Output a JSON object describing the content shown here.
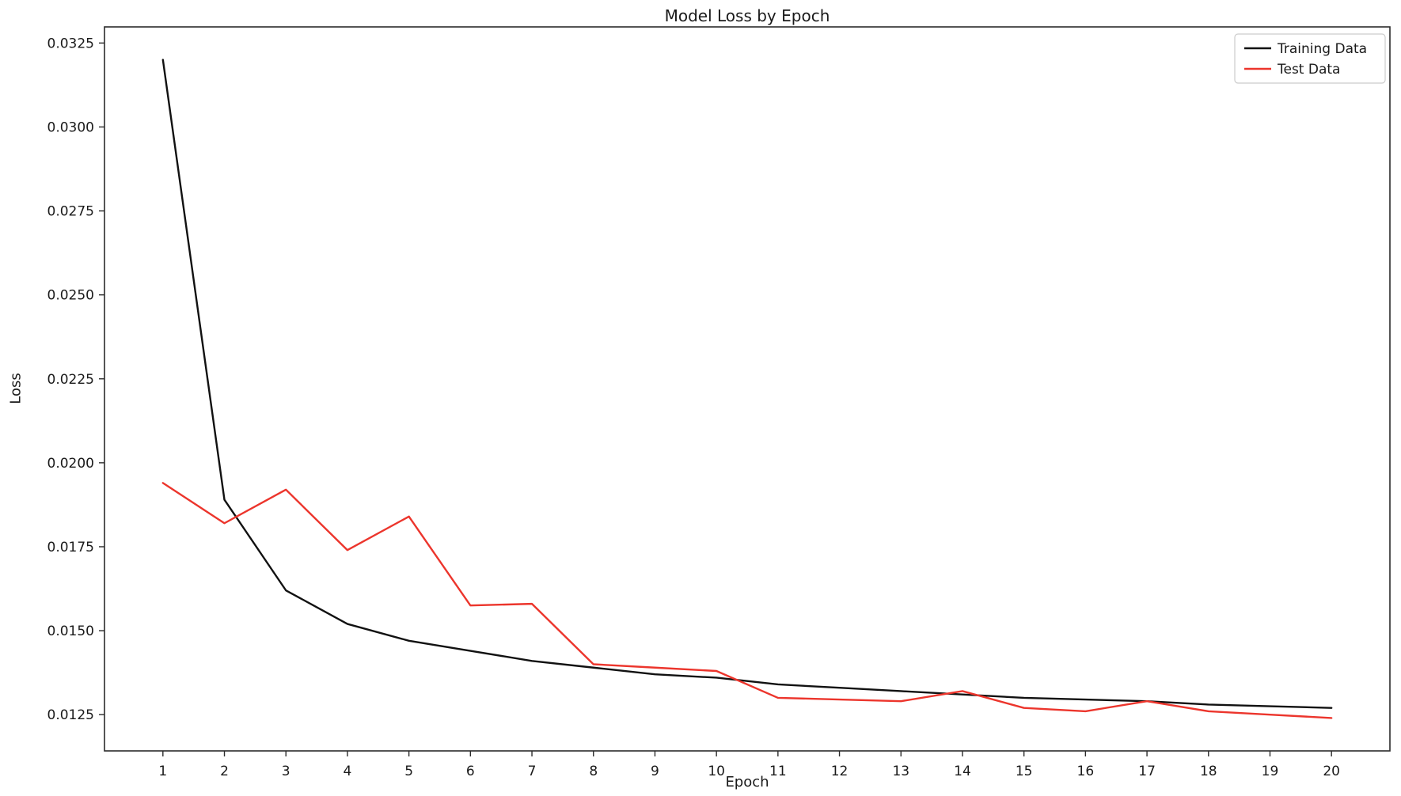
{
  "figure": {
    "background": "#ffffff"
  },
  "chart_data": {
    "type": "line",
    "title": "Model Loss by Epoch",
    "xlabel": "Epoch",
    "ylabel": "Loss",
    "grid": false,
    "frame_color": "#2b2b2b",
    "text_color": "#1a1a1a",
    "x": [
      1,
      2,
      3,
      4,
      5,
      6,
      7,
      8,
      9,
      10,
      11,
      12,
      13,
      14,
      15,
      16,
      17,
      18,
      19,
      20
    ],
    "series": [
      {
        "name": "Training Data",
        "color": "#111111",
        "values": [
          0.032,
          0.0189,
          0.0162,
          0.0152,
          0.0147,
          0.0144,
          0.0141,
          0.0139,
          0.0137,
          0.0136,
          0.0134,
          0.0133,
          0.0132,
          0.0131,
          0.013,
          0.01295,
          0.0129,
          0.0128,
          0.01275,
          0.0127
        ]
      },
      {
        "name": "Test Data",
        "color": "#ec352c",
        "values": [
          0.0194,
          0.0182,
          0.0192,
          0.0174,
          0.0184,
          0.01575,
          0.0158,
          0.014,
          0.0139,
          0.0138,
          0.013,
          0.01295,
          0.0129,
          0.0132,
          0.0127,
          0.0126,
          0.0129,
          0.0126,
          0.0125,
          0.0124
        ]
      }
    ],
    "xlim": [
      0.05,
      20.95
    ],
    "ylim": [
      0.01142,
      0.03298
    ],
    "x_ticks": [
      1,
      2,
      3,
      4,
      5,
      6,
      7,
      8,
      9,
      10,
      11,
      12,
      13,
      14,
      15,
      16,
      17,
      18,
      19,
      20
    ],
    "x_tick_labels": [
      "1",
      "2",
      "3",
      "4",
      "5",
      "6",
      "7",
      "8",
      "9",
      "10",
      "11",
      "12",
      "13",
      "14",
      "15",
      "16",
      "17",
      "18",
      "19",
      "20"
    ],
    "y_ticks": [
      0.0125,
      0.015,
      0.0175,
      0.02,
      0.0225,
      0.025,
      0.0275,
      0.03,
      0.0325
    ],
    "y_tick_labels": [
      "0.0125",
      "0.0150",
      "0.0175",
      "0.0200",
      "0.0225",
      "0.0250",
      "0.0275",
      "0.0300",
      "0.0325"
    ],
    "legend": {
      "position": "upper right",
      "entries": [
        "Training Data",
        "Test Data"
      ]
    }
  }
}
